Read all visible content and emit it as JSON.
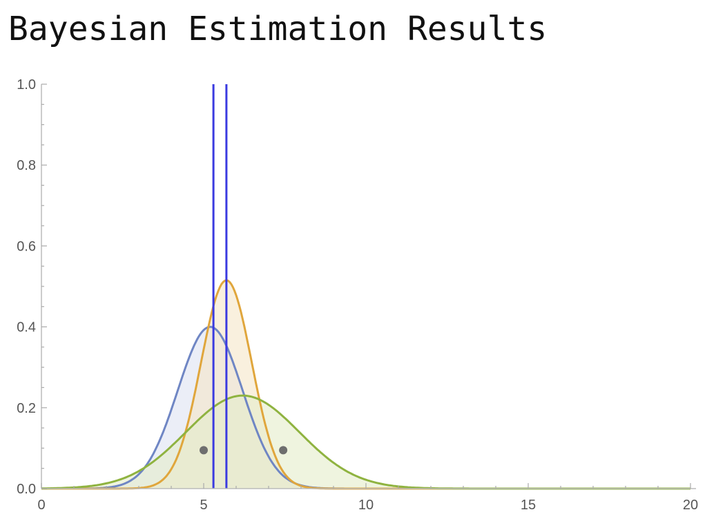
{
  "chart_data": {
    "type": "line",
    "title": "Bayesian Estimation Results",
    "xlabel": "",
    "ylabel": "",
    "xlim": [
      0,
      20
    ],
    "ylim": [
      0,
      1.0
    ],
    "x_ticks": [
      "0",
      "5",
      "10",
      "15",
      "20"
    ],
    "y_ticks": [
      "0.0",
      "0.2",
      "0.4",
      "0.6",
      "0.8",
      "1.0"
    ],
    "grid": false,
    "legend": "none",
    "series": [
      {
        "type": "density",
        "mean": 5.2,
        "sd": 1.0,
        "peak": 0.4,
        "color": "#6f86c4",
        "fill": "#dde3f2"
      },
      {
        "type": "density",
        "mean": 5.7,
        "sd": 0.78,
        "peak": 0.515,
        "color": "#e0a63c",
        "fill": "#f5e6c8"
      },
      {
        "type": "density",
        "mean": 6.2,
        "sd": 1.75,
        "peak": 0.23,
        "color": "#8fb340",
        "fill": "#e5ecc9"
      }
    ],
    "vertical_lines": [
      {
        "x": 5.3,
        "y_top": 1.0,
        "color": "#3a3ae0"
      },
      {
        "x": 5.7,
        "y_top": 1.0,
        "color": "#3a3ae0"
      }
    ],
    "points": [
      {
        "x": 5.0,
        "y": 0.095,
        "color": "#6e6e6e"
      },
      {
        "x": 7.45,
        "y": 0.095,
        "color": "#6e6e6e"
      }
    ]
  }
}
